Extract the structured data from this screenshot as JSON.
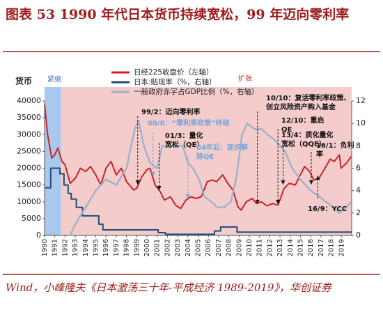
{
  "chart_data": {
    "type": "line",
    "title": "图表 53   1990 年代日本货币持续宽松，99 年迈向零利率",
    "source": "Wind，小峰隆夫《日本激荡三十年-平成经济 1989-2019》，华创证券",
    "y_label": "货币",
    "xlim": [
      1990,
      2020
    ],
    "xticks": [
      1990,
      1991,
      1992,
      1993,
      1994,
      1995,
      1996,
      1997,
      1998,
      1999,
      2000,
      2001,
      2002,
      2003,
      2004,
      2005,
      2006,
      2007,
      2008,
      2009,
      2010,
      2011,
      2012,
      2013,
      2014,
      2015,
      2016,
      2017,
      2018,
      2019
    ],
    "ylim": [
      0,
      40000
    ],
    "yticks": [
      0,
      5000,
      10000,
      15000,
      20000,
      25000,
      30000,
      35000,
      40000
    ],
    "y2lim": [
      0,
      12
    ],
    "y2ticks": [
      0,
      2,
      4,
      6,
      8,
      10,
      12
    ],
    "regions": [
      {
        "label": "紧缩",
        "from": 1990,
        "to": 1991.6,
        "color": "#a9c8ee"
      },
      {
        "label": "扩张",
        "from": 1991.6,
        "to": 2020,
        "color": "#f5cccc"
      }
    ],
    "series": [
      {
        "name": "日经225收盘价（左轴）",
        "color": "#cc2222",
        "axis": "y",
        "x": [
          1990.0,
          1990.3,
          1990.7,
          1991.0,
          1991.3,
          1991.7,
          1992.0,
          1992.5,
          1993.0,
          1993.5,
          1994.0,
          1994.5,
          1995.0,
          1995.5,
          1996.0,
          1996.5,
          1997.0,
          1997.5,
          1998.0,
          1998.7,
          1999.0,
          1999.5,
          2000.0,
          2000.3,
          2000.8,
          2001.3,
          2001.7,
          2002.3,
          2002.8,
          2003.3,
          2003.8,
          2004.3,
          2004.8,
          2005.3,
          2005.9,
          2006.4,
          2006.8,
          2007.4,
          2007.9,
          2008.4,
          2008.9,
          2009.2,
          2009.7,
          2010.3,
          2010.7,
          2011.2,
          2011.7,
          2012.3,
          2012.8,
          2013.4,
          2013.9,
          2014.5,
          2014.9,
          2015.4,
          2015.9,
          2016.3,
          2016.8,
          2017.3,
          2017.9,
          2018.3,
          2018.8,
          2018.95,
          2019.5,
          2019.95
        ],
        "values": [
          38900,
          30000,
          23000,
          24000,
          26000,
          22000,
          21000,
          15500,
          17000,
          20000,
          19000,
          20500,
          18000,
          15000,
          20000,
          22000,
          18000,
          20000,
          16000,
          13500,
          14000,
          17500,
          19500,
          20000,
          15000,
          13000,
          10500,
          11500,
          9000,
          8000,
          10500,
          11500,
          11000,
          11500,
          16000,
          16500,
          16000,
          18000,
          15500,
          13500,
          8500,
          7500,
          10000,
          11000,
          9500,
          10000,
          8800,
          9500,
          9000,
          14000,
          15500,
          15000,
          17500,
          20500,
          19000,
          16500,
          17000,
          19500,
          22700,
          22000,
          24000,
          20000,
          21500,
          23500
        ]
      },
      {
        "name": "日本:贴现率（%，右轴）",
        "color": "#1f4e79",
        "axis": "y2",
        "x": [
          1990.0,
          1990.6,
          1990.6,
          1991.5,
          1991.5,
          1991.9,
          1991.9,
          1992.3,
          1992.3,
          1992.6,
          1992.6,
          1993.1,
          1993.1,
          1993.7,
          1993.7,
          1995.3,
          1995.3,
          1995.7,
          1995.7,
          2001.1,
          2001.1,
          2001.8,
          2001.8,
          2006.6,
          2006.6,
          2007.2,
          2007.2,
          2008.8,
          2008.8,
          2020.0
        ],
        "values": [
          4.25,
          4.25,
          6.0,
          6.0,
          5.5,
          5.5,
          4.5,
          4.5,
          3.75,
          3.75,
          3.25,
          3.25,
          2.5,
          2.5,
          1.75,
          1.75,
          1.0,
          1.0,
          0.5,
          0.5,
          0.25,
          0.25,
          0.1,
          0.1,
          0.4,
          0.4,
          0.75,
          0.75,
          0.3,
          0.3
        ]
      },
      {
        "name": "一般政府赤字占GDP比例（%，右轴）",
        "color": "#9fb3c8",
        "axis": "y2",
        "x": [
          1992.5,
          1993.0,
          1994.0,
          1995.0,
          1996.0,
          1997.0,
          1998.0,
          1998.8,
          1999.2,
          1999.7,
          2000.3,
          2001.0,
          2001.5,
          2002.3,
          2002.8,
          2003.5,
          2004.0,
          2004.5,
          2005.1,
          2005.6,
          2006.3,
          2006.9,
          2007.5,
          2008.2,
          2008.7,
          2009.3,
          2009.8,
          2010.5,
          2011.2,
          2011.8,
          2012.5,
          2013.0,
          2013.5,
          2014.2,
          2015.0,
          2016.0,
          2016.8,
          2017.5,
          2018.2,
          2018.8,
          2019.5,
          2019.95
        ],
        "values": [
          0,
          1,
          2.5,
          4,
          5,
          4.5,
          6,
          9.5,
          10.2,
          8,
          6.5,
          6,
          8,
          8,
          8,
          8,
          6.5,
          6,
          5,
          3.5,
          3,
          2.5,
          2.5,
          3,
          5,
          9,
          10,
          9.5,
          9.5,
          9,
          8.5,
          8,
          7.5,
          6,
          5,
          4,
          3.5,
          3,
          2.5,
          2,
          2.5,
          3
        ]
      }
    ],
    "annotations": [
      {
        "text": "99/2：迈向零利率",
        "color": "#111"
      },
      {
        "text": "00/8：“零利率政策”终结",
        "color": "#6fa8dc"
      },
      {
        "text": "01/3：量化宽松（QE）",
        "color": "#111"
      },
      {
        "text": "04年后：逐步解除QE",
        "color": "#6fa8dc"
      },
      {
        "text": "10/10：复活零利率政策、创立风险资产购入基金",
        "color": "#111"
      },
      {
        "text": "12/10：重启QE",
        "color": "#111"
      },
      {
        "text": "13/4：质化量化宽松（QQE）",
        "color": "#111"
      },
      {
        "text": "16/1：负利率",
        "color": "#111"
      },
      {
        "text": "16/9：YCC",
        "color": "#111"
      }
    ]
  }
}
